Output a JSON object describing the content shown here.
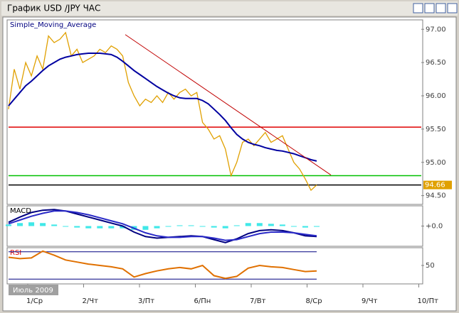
{
  "window": {
    "title": "График USD /JPY  ЧАС",
    "date_label": "Июль 2009"
  },
  "time_axis": {
    "labels": [
      "1/Ср",
      "2/Чт",
      "3/Пт",
      "6/Пн",
      "7/Вт",
      "8/Ср",
      "9/Чт",
      "10/Пт"
    ]
  },
  "chart_data": [
    {
      "type": "line",
      "title": "Simple_Moving_Average",
      "ylim": [
        94.4,
        97.12
      ],
      "yticks": [
        {
          "value": 97,
          "label": "97.00"
        },
        {
          "value": 96.5,
          "label": "96.50"
        },
        {
          "value": 96,
          "label": "96.00"
        },
        {
          "value": 95.5,
          "label": "95.50"
        },
        {
          "value": 95,
          "label": "95.00"
        },
        {
          "value": 94.5,
          "label": "94.50"
        }
      ],
      "series": [
        {
          "color": "#e0a000",
          "values": [
            95.8,
            96.4,
            96.1,
            96.5,
            96.3,
            96.6,
            96.4,
            96.9,
            96.8,
            96.85,
            96.95,
            96.6,
            96.7,
            96.5,
            96.55,
            96.6,
            96.7,
            96.65,
            96.75,
            96.7,
            96.6,
            96.2,
            96.0,
            95.85,
            95.95,
            95.9,
            96.0,
            95.9,
            96.05,
            95.95,
            96.05,
            96.1,
            96.0,
            96.05,
            95.6,
            95.5,
            95.35,
            95.4,
            95.2,
            94.8,
            95.0,
            95.3,
            95.35,
            95.25,
            95.35,
            95.45,
            95.3,
            95.35,
            95.4,
            95.2,
            95.0,
            94.9,
            94.75,
            94.58,
            94.66
          ]
        },
        {
          "color": "#0000a0",
          "values": [
            95.85,
            95.95,
            96.05,
            96.15,
            96.22,
            96.3,
            96.38,
            96.45,
            96.5,
            96.55,
            96.58,
            96.6,
            96.62,
            96.63,
            96.64,
            96.64,
            96.64,
            96.63,
            96.62,
            96.58,
            96.52,
            96.45,
            96.38,
            96.32,
            96.26,
            96.2,
            96.14,
            96.09,
            96.04,
            96.0,
            95.97,
            95.96,
            95.96,
            95.96,
            95.93,
            95.88,
            95.8,
            95.72,
            95.63,
            95.52,
            95.42,
            95.35,
            95.3,
            95.27,
            95.25,
            95.22,
            95.2,
            95.18,
            95.17,
            95.15,
            95.13,
            95.1,
            95.07,
            95.04,
            95.02
          ]
        }
      ],
      "trendline": {
        "color": "#c00000",
        "values": [
          96.92,
          94.81
        ]
      },
      "levels": [
        {
          "value": 95.53,
          "color": "#e00000"
        },
        {
          "value": 94.8,
          "color": "#00c000"
        },
        {
          "value": 94.66,
          "color": "#000000",
          "label": "94.66"
        }
      ]
    },
    {
      "type": "line",
      "title": "MACD",
      "ylim": [
        -0.25,
        0.25
      ],
      "yticks": [
        {
          "value": 0,
          "label": "+0.0"
        }
      ],
      "series": [
        {
          "type": "bar",
          "color": "#40e8e8",
          "values": [
            0.02,
            0.04,
            0.05,
            0.04,
            0.02,
            0.0,
            -0.02,
            -0.03,
            -0.03,
            -0.03,
            -0.03,
            -0.05,
            -0.05,
            -0.03,
            0.0,
            0.01,
            0.01,
            0.0,
            -0.02,
            -0.03,
            0.01,
            0.04,
            0.04,
            0.03,
            0.02,
            0.0,
            -0.02,
            -0.01
          ]
        },
        {
          "color": "#000080",
          "values": [
            0.05,
            0.12,
            0.18,
            0.21,
            0.22,
            0.2,
            0.16,
            0.12,
            0.08,
            0.04,
            0.0,
            -0.08,
            -0.14,
            -0.16,
            -0.15,
            -0.14,
            -0.13,
            -0.14,
            -0.18,
            -0.22,
            -0.17,
            -0.1,
            -0.06,
            -0.05,
            -0.06,
            -0.09,
            -0.13,
            -0.14
          ]
        },
        {
          "color": "#2a2ac8",
          "values": [
            0.03,
            0.08,
            0.13,
            0.17,
            0.2,
            0.2,
            0.18,
            0.15,
            0.11,
            0.07,
            0.03,
            -0.03,
            -0.09,
            -0.13,
            -0.15,
            -0.15,
            -0.14,
            -0.14,
            -0.16,
            -0.19,
            -0.18,
            -0.14,
            -0.1,
            -0.08,
            -0.08,
            -0.09,
            -0.11,
            -0.13
          ]
        }
      ]
    },
    {
      "type": "line",
      "title": "RSI",
      "ylim": [
        25,
        75
      ],
      "yticks": [
        50
      ],
      "levels": [
        {
          "value": 70,
          "color": "#000080"
        },
        {
          "value": 30,
          "color": "#000080"
        }
      ],
      "series": [
        {
          "color": "#e07000",
          "values": [
            62,
            60,
            61,
            71,
            65,
            58,
            55,
            52,
            50,
            48,
            45,
            33,
            38,
            42,
            45,
            47,
            45,
            50,
            35,
            31,
            34,
            46,
            50,
            48,
            47,
            44,
            41,
            42
          ]
        }
      ]
    }
  ]
}
